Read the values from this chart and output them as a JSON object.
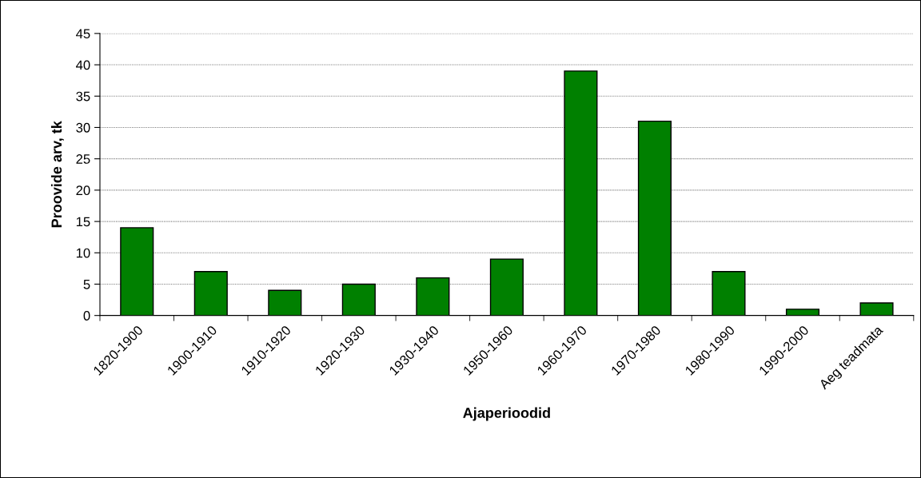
{
  "chart_data": {
    "type": "bar",
    "xlabel": "Ajaperioodid",
    "ylabel": "Proovide arv, tk",
    "categories": [
      "1820-1900",
      "1900-1910",
      "1910-1920",
      "1920-1930",
      "1930-1940",
      "1950-1960",
      "1960-1970",
      "1970-1980",
      "1980-1990",
      "1990-2000",
      "Aeg teadmata"
    ],
    "values": [
      14,
      7,
      4,
      5,
      6,
      9,
      39,
      31,
      7,
      1,
      2
    ],
    "color": "#008000",
    "ylim": [
      0,
      45
    ],
    "yticks": [
      0,
      5,
      10,
      15,
      20,
      25,
      30,
      35,
      40,
      45
    ],
    "grid": "y",
    "legend": false
  }
}
